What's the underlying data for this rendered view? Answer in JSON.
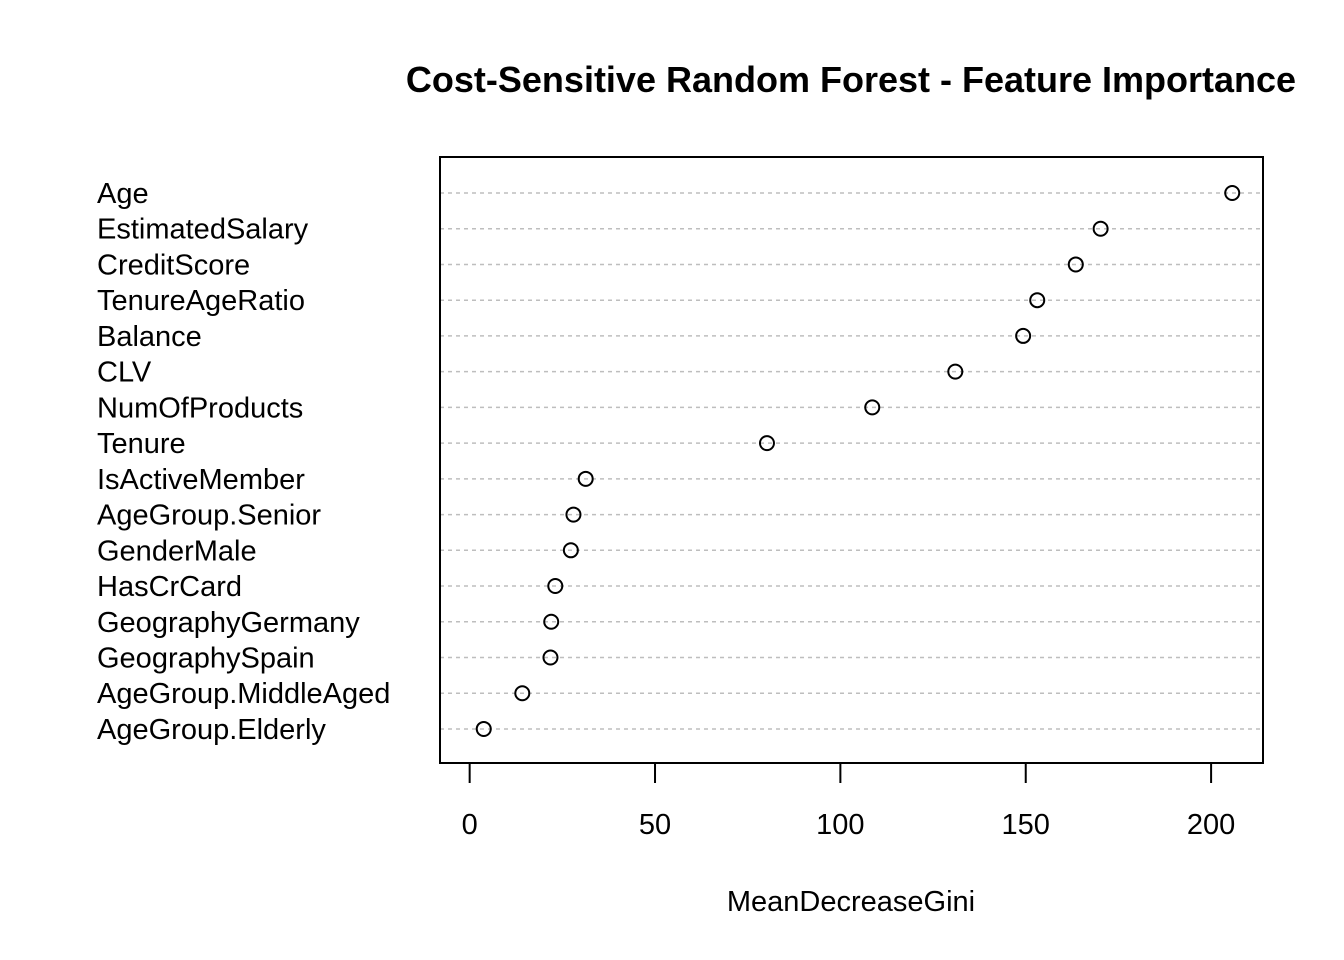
{
  "chart_data": {
    "type": "scatter",
    "title": "Cost-Sensitive Random Forest - Feature Importance",
    "xlabel": "MeanDecreaseGini",
    "ylabel": "",
    "xlim": [
      -8,
      214
    ],
    "xticks": [
      0,
      50,
      100,
      150,
      200
    ],
    "grid": "horizontal dotted",
    "categories": [
      "Age",
      "EstimatedSalary",
      "CreditScore",
      "TenureAgeRatio",
      "Balance",
      "CLV",
      "NumOfProducts",
      "Tenure",
      "IsActiveMember",
      "AgeGroup.Senior",
      "GenderMale",
      "HasCrCard",
      "GeographyGermany",
      "GeographySpain",
      "AgeGroup.MiddleAged",
      "AgeGroup.Elderly"
    ],
    "values": [
      205.7,
      170.2,
      163.5,
      153.1,
      149.3,
      131.0,
      108.6,
      80.2,
      31.3,
      28.0,
      27.3,
      23.1,
      22.0,
      21.8,
      14.2,
      3.8
    ]
  }
}
